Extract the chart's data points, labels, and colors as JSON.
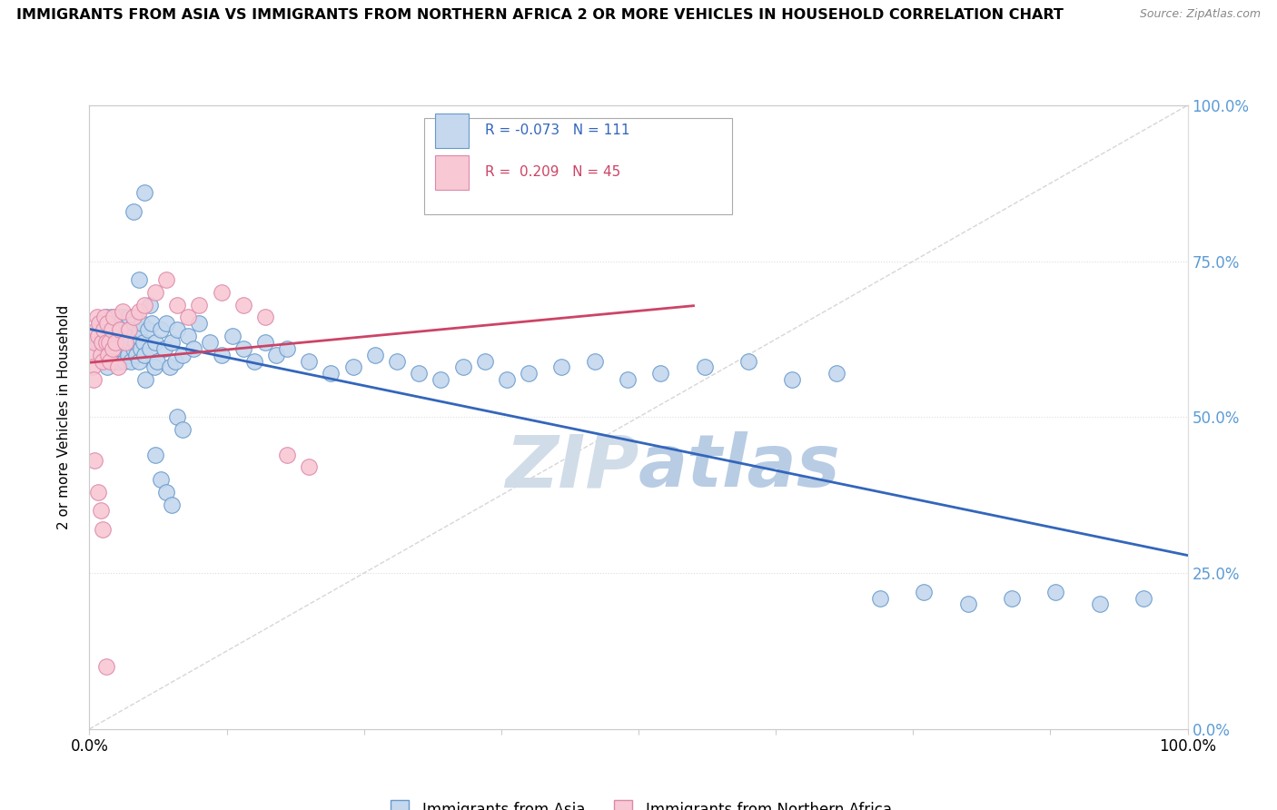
{
  "title": "IMMIGRANTS FROM ASIA VS IMMIGRANTS FROM NORTHERN AFRICA 2 OR MORE VEHICLES IN HOUSEHOLD CORRELATION CHART",
  "source": "Source: ZipAtlas.com",
  "ylabel": "2 or more Vehicles in Household",
  "blue_R": -0.073,
  "blue_N": 111,
  "pink_R": 0.209,
  "pink_N": 45,
  "blue_color": "#c5d8ee",
  "blue_edge_color": "#6699cc",
  "blue_line_color": "#3366bb",
  "pink_color": "#f8c8d4",
  "pink_edge_color": "#dd88aa",
  "pink_line_color": "#cc4466",
  "ref_line_color": "#cccccc",
  "legend_blue_label": "Immigrants from Asia",
  "legend_pink_label": "Immigrants from Northern Africa",
  "right_tick_color": "#5b9bd5",
  "watermark_color": "#d0dce8",
  "blue_x": [
    0.005,
    0.008,
    0.01,
    0.01,
    0.012,
    0.013,
    0.015,
    0.015,
    0.016,
    0.017,
    0.018,
    0.019,
    0.02,
    0.02,
    0.021,
    0.022,
    0.022,
    0.023,
    0.024,
    0.025,
    0.025,
    0.026,
    0.027,
    0.028,
    0.028,
    0.029,
    0.03,
    0.03,
    0.031,
    0.032,
    0.033,
    0.034,
    0.035,
    0.035,
    0.036,
    0.037,
    0.038,
    0.039,
    0.04,
    0.041,
    0.042,
    0.043,
    0.044,
    0.045,
    0.046,
    0.047,
    0.048,
    0.049,
    0.05,
    0.051,
    0.053,
    0.055,
    0.057,
    0.059,
    0.06,
    0.062,
    0.065,
    0.068,
    0.07,
    0.073,
    0.075,
    0.078,
    0.08,
    0.085,
    0.09,
    0.095,
    0.1,
    0.11,
    0.12,
    0.13,
    0.14,
    0.15,
    0.16,
    0.17,
    0.18,
    0.2,
    0.22,
    0.24,
    0.26,
    0.28,
    0.3,
    0.32,
    0.34,
    0.36,
    0.38,
    0.4,
    0.43,
    0.46,
    0.49,
    0.52,
    0.56,
    0.6,
    0.64,
    0.68,
    0.72,
    0.76,
    0.8,
    0.84,
    0.88,
    0.92,
    0.96,
    0.04,
    0.045,
    0.05,
    0.055,
    0.06,
    0.065,
    0.07,
    0.075,
    0.08,
    0.085
  ],
  "blue_y": [
    0.63,
    0.62,
    0.65,
    0.6,
    0.64,
    0.61,
    0.66,
    0.62,
    0.58,
    0.64,
    0.61,
    0.65,
    0.62,
    0.66,
    0.63,
    0.59,
    0.65,
    0.61,
    0.64,
    0.6,
    0.66,
    0.62,
    0.59,
    0.64,
    0.61,
    0.65,
    0.62,
    0.66,
    0.63,
    0.59,
    0.65,
    0.61,
    0.64,
    0.6,
    0.66,
    0.62,
    0.59,
    0.64,
    0.61,
    0.65,
    0.62,
    0.6,
    0.63,
    0.59,
    0.64,
    0.61,
    0.65,
    0.62,
    0.6,
    0.56,
    0.64,
    0.61,
    0.65,
    0.58,
    0.62,
    0.59,
    0.64,
    0.61,
    0.65,
    0.58,
    0.62,
    0.59,
    0.64,
    0.6,
    0.63,
    0.61,
    0.65,
    0.62,
    0.6,
    0.63,
    0.61,
    0.59,
    0.62,
    0.6,
    0.61,
    0.59,
    0.57,
    0.58,
    0.6,
    0.59,
    0.57,
    0.56,
    0.58,
    0.59,
    0.56,
    0.57,
    0.58,
    0.59,
    0.56,
    0.57,
    0.58,
    0.59,
    0.56,
    0.57,
    0.21,
    0.22,
    0.2,
    0.21,
    0.22,
    0.2,
    0.21,
    0.83,
    0.72,
    0.86,
    0.68,
    0.44,
    0.4,
    0.38,
    0.36,
    0.5,
    0.48
  ],
  "pink_x": [
    0.002,
    0.003,
    0.004,
    0.005,
    0.006,
    0.007,
    0.008,
    0.009,
    0.01,
    0.011,
    0.012,
    0.013,
    0.014,
    0.015,
    0.016,
    0.017,
    0.018,
    0.019,
    0.02,
    0.021,
    0.022,
    0.024,
    0.026,
    0.028,
    0.03,
    0.033,
    0.036,
    0.04,
    0.045,
    0.05,
    0.06,
    0.07,
    0.08,
    0.09,
    0.1,
    0.12,
    0.14,
    0.16,
    0.18,
    0.2,
    0.005,
    0.008,
    0.01,
    0.012,
    0.015
  ],
  "pink_y": [
    0.6,
    0.58,
    0.56,
    0.62,
    0.64,
    0.66,
    0.63,
    0.65,
    0.6,
    0.62,
    0.59,
    0.64,
    0.66,
    0.62,
    0.65,
    0.6,
    0.62,
    0.59,
    0.64,
    0.61,
    0.66,
    0.62,
    0.58,
    0.64,
    0.67,
    0.62,
    0.64,
    0.66,
    0.67,
    0.68,
    0.7,
    0.72,
    0.68,
    0.66,
    0.68,
    0.7,
    0.68,
    0.66,
    0.44,
    0.42,
    0.43,
    0.38,
    0.35,
    0.32,
    0.1
  ]
}
